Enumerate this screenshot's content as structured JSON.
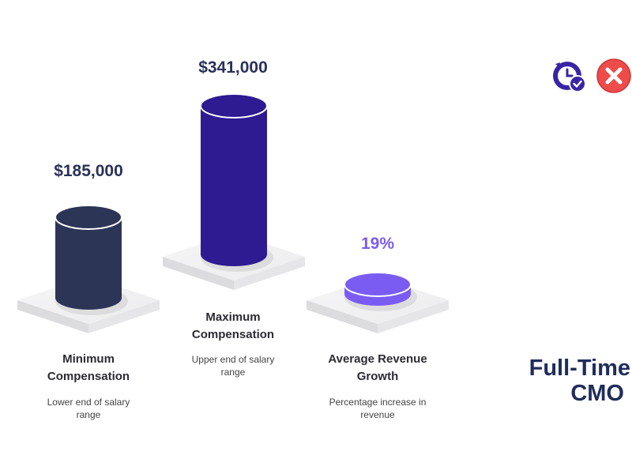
{
  "chart_data": {
    "type": "bar",
    "categories": [
      "Minimum Compensation",
      "Maximum Compensation",
      "Average Revenue Growth"
    ],
    "values": [
      185000,
      341000,
      19
    ],
    "value_labels": [
      "$185,000",
      "$341,000",
      "19%"
    ],
    "descriptions": [
      "Lower end of salary range",
      "Upper end of salary range",
      "Percentage increase in revenue"
    ],
    "colors": [
      "#2d3557",
      "#2e1a91",
      "#7b5cf2"
    ],
    "value_label_colors": [
      "#2a3158",
      "#2a3158",
      "#7b5cf2"
    ]
  },
  "headline": {
    "line1": "Full-Time",
    "line2": "CMO"
  },
  "icons": {
    "left": "clock-check-icon",
    "right": "close-x-icon",
    "left_color": "#3a24a6",
    "right_color": "#ee4b4b"
  }
}
